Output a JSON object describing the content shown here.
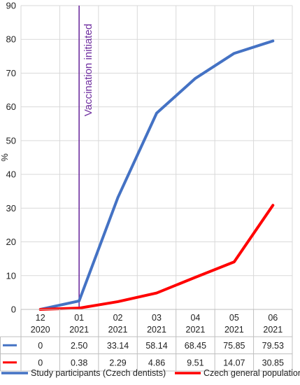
{
  "chart_data": {
    "type": "line",
    "title": "",
    "ylabel": "%",
    "xlabel": "",
    "ylim": [
      0,
      90
    ],
    "yticks": [
      0,
      10,
      20,
      30,
      40,
      50,
      60,
      70,
      80,
      90
    ],
    "grid": true,
    "categories": [
      {
        "month": "12",
        "year": "2020"
      },
      {
        "month": "01",
        "year": "2021"
      },
      {
        "month": "02",
        "year": "2021"
      },
      {
        "month": "03",
        "year": "2021"
      },
      {
        "month": "04",
        "year": "2021"
      },
      {
        "month": "05",
        "year": "2021"
      },
      {
        "month": "06",
        "year": "2021"
      }
    ],
    "series": [
      {
        "name": "Study participants (Czech dentists)",
        "color": "#4472C4",
        "values": [
          0,
          2.5,
          33.14,
          58.14,
          68.45,
          75.85,
          79.53
        ],
        "labels": [
          "0",
          "2.50",
          "33.14",
          "58.14",
          "68.45",
          "75.85",
          "79.53"
        ]
      },
      {
        "name": "Czech general population",
        "color": "#FF0000",
        "values": [
          0,
          0.38,
          2.29,
          4.86,
          9.51,
          14.07,
          30.85
        ],
        "labels": [
          "0",
          "0.38",
          "2.29",
          "4.86",
          "9.51",
          "14.07",
          "30.85"
        ]
      }
    ],
    "annotation": {
      "text": "Vaccination initiated",
      "at_category_index": 1,
      "color": "#7030A0"
    },
    "legend_position": "bottom",
    "data_table": true
  }
}
